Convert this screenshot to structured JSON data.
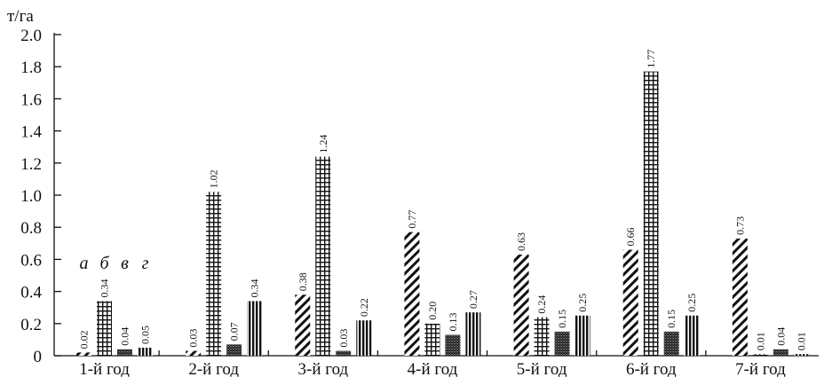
{
  "chart_data": {
    "type": "bar",
    "ylabel": "т/га",
    "ylim": [
      0,
      2.0
    ],
    "yticks": [
      "0",
      "0.2",
      "0.4",
      "0.6",
      "0.8",
      "1.0",
      "1.2",
      "1.4",
      "1.6",
      "1.8",
      "2.0"
    ],
    "grid": false,
    "categories": [
      "1-й год",
      "2-й год",
      "3-й год",
      "4-й год",
      "5-й год",
      "6-й год",
      "7-й год"
    ],
    "series": [
      {
        "name": "а",
        "pattern": "diagonal",
        "values": [
          0.02,
          0.03,
          0.38,
          0.77,
          0.63,
          0.66,
          0.73
        ],
        "labels": [
          "0.02",
          "0.03",
          "0.38",
          "0.77",
          "0.63",
          "0.66",
          "0.73"
        ]
      },
      {
        "name": "б",
        "pattern": "grid",
        "values": [
          0.34,
          1.02,
          1.24,
          0.2,
          0.24,
          1.77,
          0.01
        ],
        "labels": [
          "0.34",
          "1.02",
          "1.24",
          "0.20",
          "0.24",
          "1.77",
          "0.01"
        ]
      },
      {
        "name": "в",
        "pattern": "dense",
        "values": [
          0.04,
          0.07,
          0.03,
          0.13,
          0.15,
          0.15,
          0.04
        ],
        "labels": [
          "0.04",
          "0.07",
          "0.03",
          "0.13",
          "0.15",
          "0.15",
          "0.04"
        ]
      },
      {
        "name": "г",
        "pattern": "vertical",
        "values": [
          0.05,
          0.34,
          0.22,
          0.27,
          0.25,
          0.25,
          0.01
        ],
        "labels": [
          "0.05",
          "0.34",
          "0.22",
          "0.27",
          "0.25",
          "0.25",
          "0.01"
        ]
      }
    ],
    "colors": {
      "ink": "#111111",
      "background": "#ffffff"
    }
  }
}
